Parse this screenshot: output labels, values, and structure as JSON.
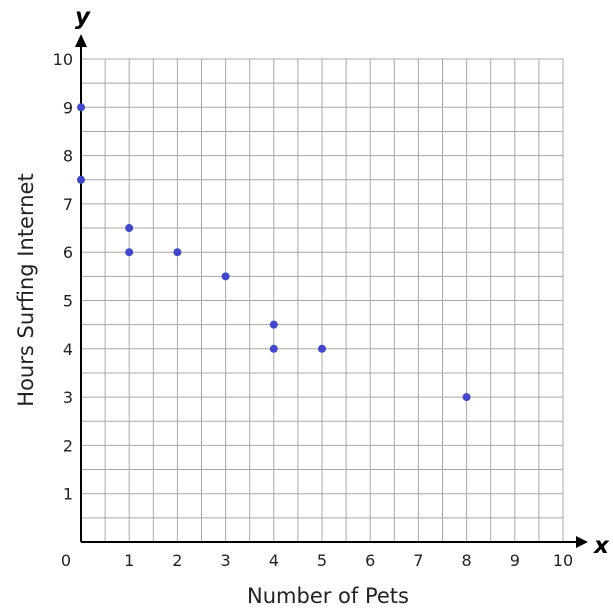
{
  "chart_data": {
    "type": "scatter",
    "title": "",
    "xlabel": "Number of Pets",
    "ylabel": "Hours Surfing Internet",
    "x_axis_letter": "x",
    "y_axis_letter": "y",
    "origin_label": "0",
    "xlim": [
      0,
      10
    ],
    "ylim": [
      0,
      10
    ],
    "grid": true,
    "minor_grid_step": 0.5,
    "x_ticks": [
      "1",
      "2",
      "3",
      "4",
      "5",
      "6",
      "7",
      "8",
      "9",
      "10"
    ],
    "y_ticks": [
      "1",
      "2",
      "3",
      "4",
      "5",
      "6",
      "7",
      "8",
      "9",
      "10"
    ],
    "point_color": "#3f48cc",
    "points": [
      {
        "x": 0,
        "y": 9
      },
      {
        "x": 0,
        "y": 7.5
      },
      {
        "x": 1,
        "y": 6.5
      },
      {
        "x": 1,
        "y": 6
      },
      {
        "x": 2,
        "y": 6
      },
      {
        "x": 3,
        "y": 5.5
      },
      {
        "x": 4,
        "y": 4.5
      },
      {
        "x": 4,
        "y": 4
      },
      {
        "x": 5,
        "y": 4
      },
      {
        "x": 8,
        "y": 3
      }
    ]
  }
}
